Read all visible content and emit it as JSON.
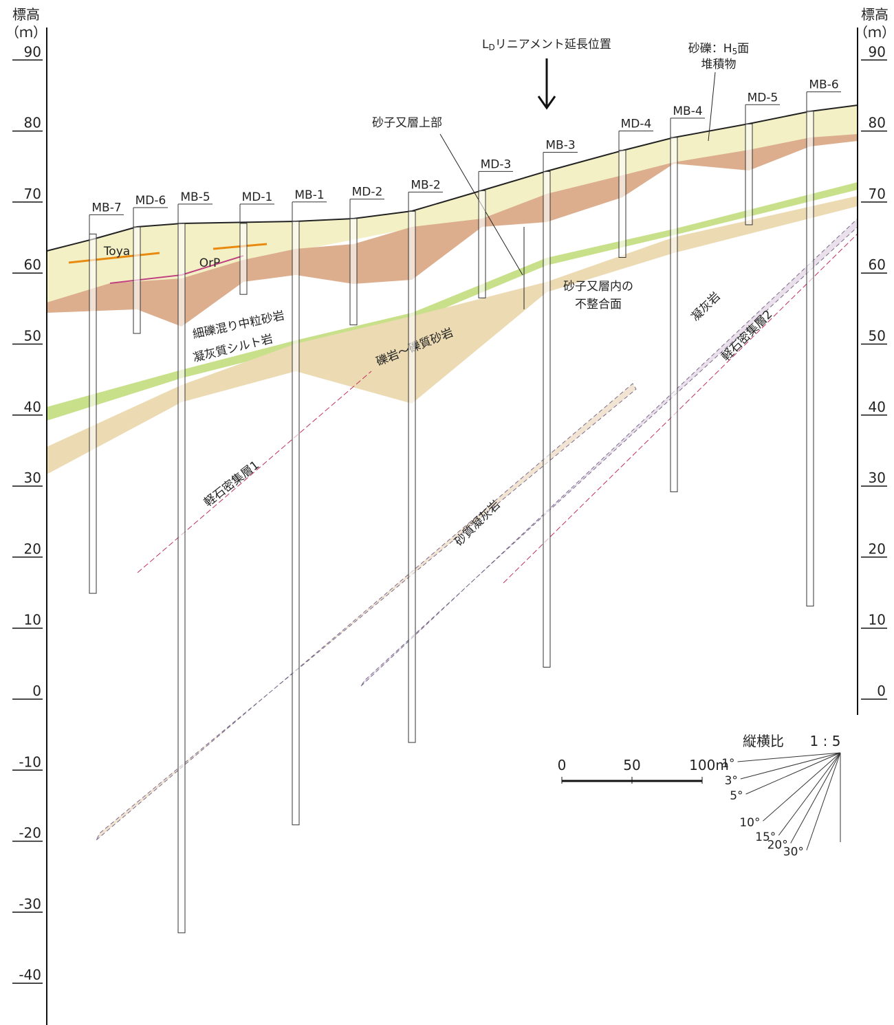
{
  "axis": {
    "title": "標高",
    "unit": "（ｍ）",
    "ticks": [
      90,
      80,
      70,
      60,
      50,
      40,
      30,
      20,
      10,
      0,
      -10,
      -20,
      -30,
      -40
    ],
    "right_ticks": [
      90,
      80,
      70,
      60,
      50,
      40,
      30,
      20,
      10,
      0
    ]
  },
  "boreholes": [
    {
      "name": "MB-7",
      "top": 65.5,
      "bottom": 14.9
    },
    {
      "name": "MD-6",
      "top": 66.5,
      "bottom": 51.5
    },
    {
      "name": "MB-5",
      "top": 67,
      "bottom": -32.9
    },
    {
      "name": "MD-1",
      "top": 67,
      "bottom": 57
    },
    {
      "name": "MB-1",
      "top": 67.3,
      "bottom": -17.7
    },
    {
      "name": "MD-2",
      "top": 67.7,
      "bottom": 52.7
    },
    {
      "name": "MB-2",
      "top": 68.7,
      "bottom": -6.1
    },
    {
      "name": "MD-3",
      "top": 71.6,
      "bottom": 56.5
    },
    {
      "name": "MB-3",
      "top": 74.3,
      "bottom": 4.5
    },
    {
      "name": "MD-4",
      "top": 77.3,
      "bottom": 62.2
    },
    {
      "name": "MB-4",
      "top": 79.1,
      "bottom": 29.2
    },
    {
      "name": "MD-5",
      "top": 81,
      "bottom": 66.8
    },
    {
      "name": "MB-6",
      "top": 82.8,
      "bottom": 13.1
    }
  ],
  "lineament": {
    "main": "L",
    "sub": "D",
    "rest": "リニアメント延長位置"
  },
  "h5": {
    "main": "砂礫：H",
    "sub": "5",
    "rest": "面",
    "line2": "堆積物"
  },
  "annotations": {
    "upper": "砂子又層上部",
    "unconf1": "砂子又層内の",
    "unconf2": "不整合面",
    "sandstone": "細礫混り中粒砂岩",
    "siltstone": "凝灰質シルト岩",
    "conglomerate": "礫岩～礫質砂岩",
    "pumice1": "軽石密集層1",
    "pumice2": "軽石密集層2",
    "sandy_tuff": "砂質凝灰岩",
    "tuff": "凝灰岩",
    "toya": "Toya",
    "orp": "OrP"
  },
  "scale": {
    "ticks": [
      0,
      50,
      {
        "value": 100,
        "label": "100m"
      }
    ]
  },
  "aspect": {
    "title": "縦横比",
    "ratio": "1 : 5",
    "angles": [
      {
        "value": 1,
        "label": "1°"
      },
      {
        "value": 3,
        "label": "3°"
      },
      {
        "value": 5,
        "label": "5°"
      },
      {
        "value": 10,
        "label": "10°"
      },
      {
        "value": 15,
        "label": "15°"
      },
      {
        "value": 20,
        "label": "20°"
      },
      {
        "value": 30,
        "label": "30°"
      }
    ]
  }
}
